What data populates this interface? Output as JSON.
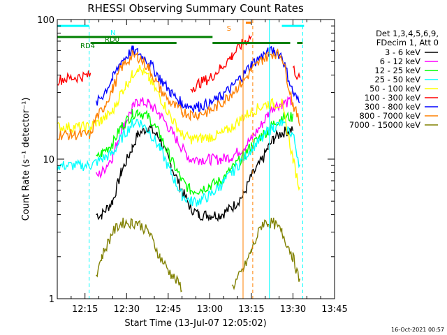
{
  "chart_data": {
    "type": "line",
    "title": "RHESSI Observing Summary Count Rates",
    "xlabel": "Start Time (13-Jul-07 12:05:02)",
    "ylabel": "Count Rate (s⁻¹ detector⁻¹)",
    "x_axis": {
      "start": "12:05",
      "end": "13:45",
      "ticks": [
        "12:15",
        "12:30",
        "12:45",
        "13:00",
        "13:15",
        "13:30",
        "13:45"
      ],
      "tick_minutes": [
        15,
        30,
        45,
        60,
        75,
        90,
        105
      ]
    },
    "y_axis": {
      "scale": "log",
      "ylim": [
        1,
        100
      ],
      "ticks": [
        "1",
        "10",
        "100"
      ],
      "tick_values": [
        1,
        10,
        100
      ]
    },
    "legend_header": [
      "Det 1,3,4,5,6,9,",
      "FDecim 1, Att 0"
    ],
    "legend_position": "right",
    "series": [
      {
        "name": "3 - 6 keV",
        "color": "#000000",
        "x": [
          5,
          17,
          19,
          21,
          25,
          28,
          32,
          34,
          38,
          42,
          46,
          50,
          53,
          56,
          60,
          64,
          68,
          72,
          75,
          79,
          81,
          83,
          86,
          90,
          92.5
        ],
        "y": [
          null,
          null,
          4,
          4,
          5,
          8,
          12,
          15,
          17,
          14,
          9,
          6,
          4.5,
          4,
          4,
          4,
          4.5,
          5.5,
          7.5,
          10,
          12,
          14,
          15.5,
          16.5,
          null
        ]
      },
      {
        "name": "6 - 12 keV",
        "color": "#ff00ff",
        "x": [
          5,
          17,
          19,
          21,
          25,
          28,
          32,
          34,
          38,
          42,
          46,
          50,
          53,
          56,
          60,
          64,
          68,
          72,
          75,
          79,
          81,
          83,
          86,
          90,
          92.5
        ],
        "y": [
          null,
          null,
          7.5,
          8,
          10.5,
          16,
          23,
          26,
          25,
          21,
          16,
          12,
          10,
          10,
          10,
          10,
          10.5,
          12,
          14,
          18,
          21,
          24,
          25,
          26,
          null
        ]
      },
      {
        "name": "12 - 25 keV",
        "color": "#00ff00",
        "x": [
          5,
          17,
          19,
          21,
          25,
          28,
          32,
          34,
          38,
          42,
          46,
          50,
          53,
          56,
          60,
          64,
          68,
          72,
          75,
          79,
          81,
          83,
          86,
          90,
          92.5
        ],
        "y": [
          null,
          null,
          10,
          11,
          13,
          17,
          21,
          22,
          20,
          15,
          10,
          7,
          6,
          6,
          6.5,
          7,
          8.5,
          10.5,
          12.5,
          15,
          16,
          18,
          20,
          20,
          null
        ]
      },
      {
        "name": "25 - 50 keV",
        "color": "#00ffff",
        "x": [
          5,
          17,
          19,
          21,
          25,
          28,
          32,
          34,
          38,
          42,
          46,
          50,
          53,
          56,
          60,
          64,
          68,
          72,
          75,
          79,
          81,
          83,
          86,
          90,
          92.5
        ],
        "y": [
          9,
          9,
          9.5,
          10,
          11,
          14,
          18,
          19,
          16,
          12,
          8,
          5.5,
          5,
          5,
          5.5,
          6.5,
          8,
          10,
          12,
          14,
          16,
          17,
          18,
          15,
          9
        ]
      },
      {
        "name": "50 - 100 keV",
        "color": "#ffff00",
        "x": [
          5,
          17,
          19,
          21,
          25,
          28,
          32,
          34,
          38,
          42,
          46,
          50,
          53,
          56,
          60,
          64,
          68,
          72,
          75,
          79,
          81,
          83,
          86,
          90,
          92.5
        ],
        "y": [
          17,
          17,
          18,
          19,
          22,
          30,
          40,
          46,
          38,
          28,
          20,
          15,
          14,
          14,
          14.5,
          15,
          17,
          20,
          22,
          24,
          25,
          25,
          25,
          10,
          6
        ]
      },
      {
        "name": "100 - 300 keV",
        "color": "#ff0000",
        "x": [
          5,
          17,
          19,
          21,
          25,
          28,
          32,
          34,
          38,
          42,
          46,
          50,
          53,
          56,
          60,
          64,
          68,
          72,
          75,
          79,
          81,
          83,
          86,
          90,
          92.5
        ],
        "y": [
          37,
          40,
          null,
          null,
          null,
          null,
          null,
          null,
          null,
          null,
          null,
          null,
          32,
          35,
          38,
          45,
          55,
          68,
          76,
          null,
          null,
          null,
          null,
          45,
          37
        ]
      },
      {
        "name": "300 - 800 keV",
        "color": "#0000ff",
        "x": [
          5,
          17,
          19,
          21,
          25,
          28,
          32,
          34,
          38,
          42,
          46,
          50,
          53,
          56,
          60,
          64,
          68,
          72,
          75,
          79,
          81,
          83,
          86,
          90,
          92.5
        ],
        "y": [
          null,
          null,
          25,
          28,
          38,
          50,
          60,
          58,
          50,
          38,
          30,
          25,
          24,
          24,
          25,
          28,
          33,
          40,
          48,
          55,
          58,
          60,
          55,
          30,
          25
        ]
      },
      {
        "name": "800 - 7000 keV",
        "color": "#ff8000",
        "x": [
          5,
          17,
          19,
          21,
          25,
          28,
          32,
          34,
          38,
          42,
          46,
          50,
          53,
          56,
          60,
          64,
          68,
          72,
          75,
          79,
          81,
          83,
          86,
          90,
          92.5
        ],
        "y": [
          15,
          15,
          20,
          22,
          32,
          45,
          55,
          55,
          45,
          32,
          25,
          22,
          21,
          21,
          22,
          25,
          30,
          36,
          43,
          52,
          55,
          58,
          55,
          25,
          18
        ]
      },
      {
        "name": "7000 - 15000 keV",
        "color": "#808000",
        "x": [
          5,
          17,
          19,
          21,
          25,
          28,
          32,
          34,
          38,
          42,
          46,
          50,
          53,
          56,
          60,
          64,
          68,
          72,
          75,
          79,
          81,
          83,
          86,
          90,
          92.5
        ],
        "y": [
          null,
          null,
          1.5,
          2,
          3,
          3.5,
          3.5,
          3.5,
          3,
          2,
          1.5,
          1.2,
          null,
          null,
          null,
          null,
          1.2,
          1.6,
          2.2,
          3.5,
          3.5,
          3.5,
          3,
          2,
          1.3
        ]
      }
    ],
    "flags": [
      {
        "label": "N",
        "color": "#00ffff",
        "y": 90,
        "segments": [
          [
            5,
            16.5
          ],
          [
            86,
            94
          ]
        ]
      },
      {
        "label": "RD0",
        "color": "#008000",
        "y": 75,
        "segments": [
          [
            5,
            61
          ]
        ]
      },
      {
        "label": "RD4",
        "color": "#008000",
        "y": 68,
        "segments": [
          [
            17,
            48
          ],
          [
            61,
            89
          ],
          [
            91.5,
            93.5
          ]
        ]
      },
      {
        "label": "S",
        "color": "#ff8000",
        "y": 95,
        "segments": [
          [
            73,
            75
          ]
        ]
      }
    ],
    "vertical_markers": [
      {
        "x": 16.5,
        "color": "#00ffff",
        "style": "dashed"
      },
      {
        "x": 81.5,
        "color": "#00ffff",
        "style": "solid"
      },
      {
        "x": 93.5,
        "color": "#00ffff",
        "style": "dashed"
      },
      {
        "x": 72,
        "color": "#ff8000",
        "style": "solid"
      },
      {
        "x": 75.5,
        "color": "#ff8000",
        "style": "dashed"
      }
    ]
  },
  "footer": {
    "timestamp": "16-Oct-2021 00:57"
  }
}
